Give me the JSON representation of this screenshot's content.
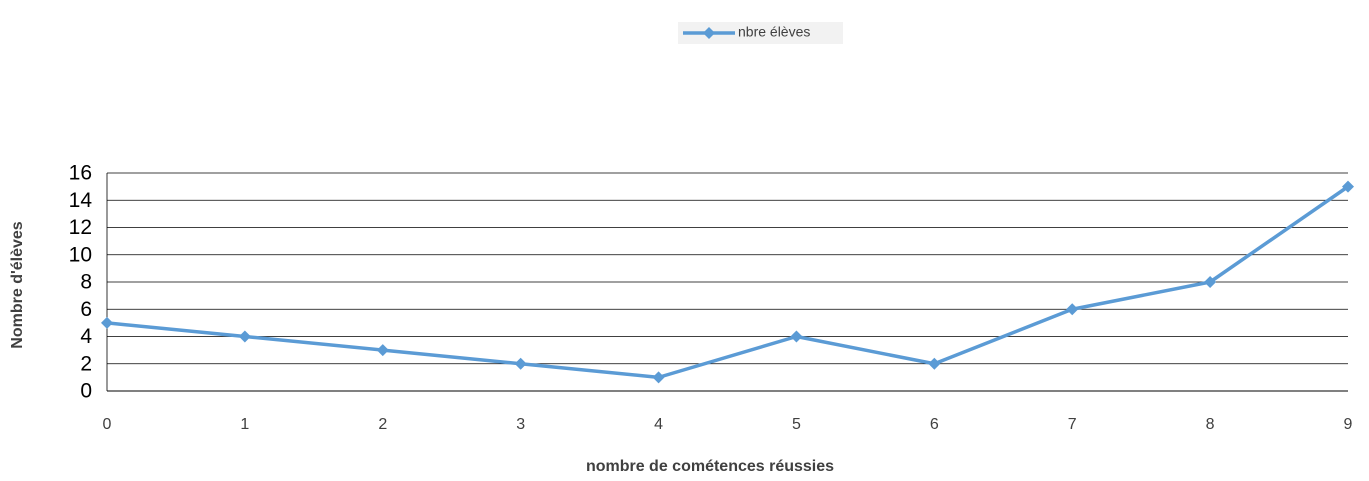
{
  "chart_data": {
    "type": "line",
    "x_label": "nombre de cométences réussies",
    "y_label": "Nombre d'élèves",
    "x": [
      0,
      1,
      2,
      3,
      4,
      5,
      6,
      7,
      8,
      9
    ],
    "series": [
      {
        "name": "nbre élèves",
        "color": "#5b9bd5",
        "values": [
          5,
          4,
          3,
          2,
          1,
          4,
          2,
          6,
          8,
          15
        ]
      }
    ],
    "xlim": [
      0,
      9
    ],
    "xticks": [
      0,
      1,
      2,
      3,
      4,
      5,
      6,
      7,
      8,
      9
    ],
    "ylim": [
      0,
      16
    ],
    "yticks": [
      0,
      2,
      4,
      6,
      8,
      10,
      12,
      14,
      16
    ],
    "grid": true,
    "legend": "top"
  }
}
